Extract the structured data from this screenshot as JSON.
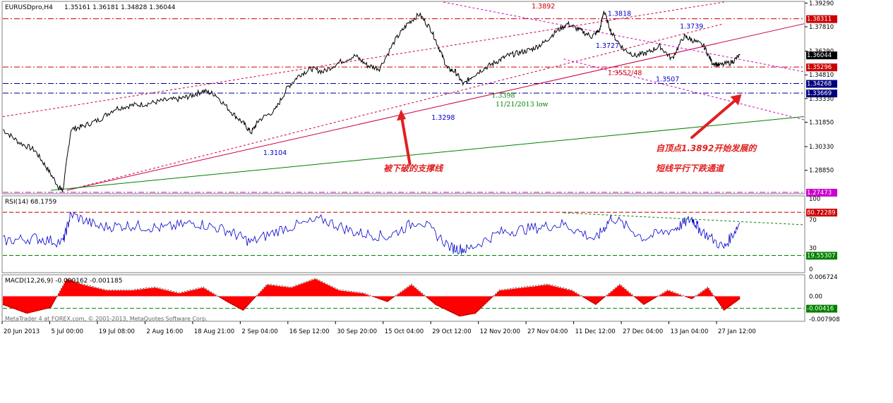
{
  "window": {
    "symbol_title": "EURUSDpro,H4",
    "ohlc": "1.35161 1.36181 1.34828 1.36044",
    "watermark": "MetaTrader 4 at FOREX.com, © 2001-2013, MetaQuotes Software Corp."
  },
  "colors": {
    "price_line": "#000000",
    "rsi_line": "#0000cc",
    "macd_hist": "#ff0000",
    "support_line": "#cc0044",
    "channel_line": "#cc0044",
    "long_trend": "#008000",
    "annotation_red": "#e02020",
    "hline_red": "#cc0000",
    "hline_blue": "#000080",
    "hline_magenta": "#cc00cc"
  },
  "chart_data": [
    {
      "id": "price",
      "type": "line",
      "ylim": [
        1.2743,
        1.3935
      ],
      "ticks_right": [
        "1.39290",
        "1.37810",
        "1.36290",
        "1.34810",
        "1.33330",
        "1.31850",
        "1.30330",
        "1.28850"
      ],
      "x_labels": [
        "20 Jun 2013",
        "5 Jul 00:00",
        "19 Jul 08:00",
        "2 Aug 16:00",
        "18 Aug 21:00",
        "2 Sep 04:00",
        "16 Sep 12:00",
        "30 Sep 20:00",
        "15 Oct 04:00",
        "29 Oct 12:00",
        "12 Nov 20:00",
        "27 Nov 04:00",
        "11 Dec 12:00",
        "27 Dec 04:00",
        "13 Jan 04:00",
        "27 Jan 12:00"
      ],
      "price_path": [
        [
          0,
          1.314
        ],
        [
          0.02,
          1.306
        ],
        [
          0.04,
          1.301
        ],
        [
          0.055,
          1.29
        ],
        [
          0.07,
          1.278
        ],
        [
          0.075,
          1.276
        ],
        [
          0.085,
          1.314
        ],
        [
          0.1,
          1.316
        ],
        [
          0.12,
          1.32
        ],
        [
          0.14,
          1.327
        ],
        [
          0.16,
          1.329
        ],
        [
          0.18,
          1.33
        ],
        [
          0.2,
          1.332
        ],
        [
          0.22,
          1.333
        ],
        [
          0.235,
          1.335
        ],
        [
          0.25,
          1.338
        ],
        [
          0.265,
          1.336
        ],
        [
          0.285,
          1.325
        ],
        [
          0.3,
          1.318
        ],
        [
          0.31,
          1.312
        ],
        [
          0.32,
          1.32
        ],
        [
          0.34,
          1.326
        ],
        [
          0.355,
          1.34
        ],
        [
          0.37,
          1.348
        ],
        [
          0.385,
          1.352
        ],
        [
          0.4,
          1.35
        ],
        [
          0.42,
          1.356
        ],
        [
          0.44,
          1.36
        ],
        [
          0.455,
          1.354
        ],
        [
          0.47,
          1.352
        ],
        [
          0.49,
          1.37
        ],
        [
          0.505,
          1.38
        ],
        [
          0.52,
          1.386
        ],
        [
          0.535,
          1.376
        ],
        [
          0.545,
          1.364
        ],
        [
          0.555,
          1.352
        ],
        [
          0.565,
          1.35
        ],
        [
          0.575,
          1.342
        ],
        [
          0.585,
          1.347
        ],
        [
          0.6,
          1.352
        ],
        [
          0.615,
          1.356
        ],
        [
          0.63,
          1.36
        ],
        [
          0.645,
          1.362
        ],
        [
          0.66,
          1.364
        ],
        [
          0.675,
          1.368
        ],
        [
          0.69,
          1.375
        ],
        [
          0.705,
          1.38
        ],
        [
          0.72,
          1.376
        ],
        [
          0.735,
          1.372
        ],
        [
          0.745,
          1.376
        ],
        [
          0.75,
          1.388
        ],
        [
          0.76,
          1.374
        ],
        [
          0.775,
          1.364
        ],
        [
          0.79,
          1.36
        ],
        [
          0.805,
          1.362
        ],
        [
          0.82,
          1.366
        ],
        [
          0.835,
          1.358
        ],
        [
          0.85,
          1.372
        ],
        [
          0.86,
          1.37
        ],
        [
          0.875,
          1.366
        ],
        [
          0.885,
          1.356
        ],
        [
          0.895,
          1.354
        ],
        [
          0.91,
          1.356
        ],
        [
          0.92,
          1.3604
        ]
      ],
      "lines": [
        {
          "from": [
            0.08,
            1.276
          ],
          "to": [
            1.0,
            1.38
          ],
          "style": "solid",
          "color": "support_line"
        },
        {
          "from": [
            0.0,
            1.322
          ],
          "to": [
            0.9,
            1.3935
          ],
          "style": "dashed",
          "color": "channel_line"
        },
        {
          "from": [
            0.08,
            1.276
          ],
          "to": [
            0.9,
            1.38
          ],
          "style": "dashed",
          "color": "channel_line"
        },
        {
          "from": [
            0.55,
            1.3935
          ],
          "to": [
            1.0,
            1.35
          ],
          "style": "dashed",
          "color": "hline_magenta"
        },
        {
          "from": [
            0.7,
            1.358
          ],
          "to": [
            1.0,
            1.32
          ],
          "style": "dashed",
          "color": "hline_magenta"
        },
        {
          "from": [
            0.06,
            1.276
          ],
          "to": [
            1.0,
            1.322
          ],
          "style": "solid",
          "color": "long_trend"
        }
      ],
      "hlines": [
        {
          "value": 1.38311,
          "label": "1.38311",
          "color": "hline_red"
        },
        {
          "value": 1.35296,
          "label": "1.35296",
          "color": "hline_red"
        },
        {
          "value": 1.34268,
          "label": "1.34268",
          "color": "hline_blue"
        },
        {
          "value": 1.33669,
          "label": "1.33669",
          "color": "hline_blue"
        },
        {
          "value": 1.27473,
          "label": "1.27473",
          "color": "hline_magenta"
        }
      ],
      "current_price": "1.36044",
      "annotations": [
        {
          "text": "1.3892",
          "x": 0.66,
          "y": 1.3895,
          "color": "hline_red"
        },
        {
          "text": "1.3818",
          "x": 0.755,
          "y": 1.385,
          "color": "rsi_line"
        },
        {
          "text": "1.3739",
          "x": 0.845,
          "y": 1.377,
          "color": "rsi_line"
        },
        {
          "text": "1.3727",
          "x": 0.74,
          "y": 1.365,
          "color": "rsi_line"
        },
        {
          "text": "1.3552/48",
          "x": 0.755,
          "y": 1.348,
          "color": "hline_red"
        },
        {
          "text": "1.3507",
          "x": 0.815,
          "y": 1.344,
          "color": "rsi_line"
        },
        {
          "text": "1.3398",
          "x": 0.61,
          "y": 1.334,
          "color": "long_trend"
        },
        {
          "text": "11/21/2013 low",
          "x": 0.615,
          "y": 1.3285,
          "color": "long_trend"
        },
        {
          "text": "1.3298",
          "x": 0.535,
          "y": 1.32,
          "color": "rsi_line"
        },
        {
          "text": "1.3104",
          "x": 0.325,
          "y": 1.298,
          "color": "rsi_line"
        }
      ],
      "notes": [
        {
          "text": "被下破的支撑线",
          "x": 0.475,
          "y": 1.288
        },
        {
          "text": "自顶点1.3892开始发展的",
          "x": 0.815,
          "y": 1.3005
        },
        {
          "text": "短线平行下跌通道",
          "x": 0.815,
          "y": 1.288
        }
      ]
    },
    {
      "id": "rsi",
      "type": "line",
      "title": "RSI(14) 68.1759",
      "ylim": [
        0,
        100
      ],
      "ticks_right": [
        "100",
        "70",
        "30",
        "0"
      ],
      "levels": [
        {
          "value": 80.72289,
          "label": "80.72289",
          "color": "hline_red"
        },
        {
          "value": 19.55307,
          "label": "19.55307",
          "color": "long_trend"
        }
      ],
      "x": [
        0,
        0.04,
        0.075,
        0.085,
        0.12,
        0.16,
        0.2,
        0.24,
        0.28,
        0.31,
        0.35,
        0.4,
        0.44,
        0.48,
        0.52,
        0.56,
        0.58,
        0.62,
        0.66,
        0.7,
        0.74,
        0.76,
        0.8,
        0.84,
        0.86,
        0.87,
        0.9,
        0.92
      ],
      "values": [
        40,
        44,
        38,
        78,
        60,
        62,
        58,
        66,
        55,
        38,
        58,
        70,
        52,
        46,
        70,
        30,
        28,
        52,
        58,
        64,
        42,
        74,
        44,
        58,
        72,
        56,
        30,
        66
      ]
    },
    {
      "id": "macd",
      "type": "bar",
      "title": "MACD(12,26,9) -0.000162 -0.001185",
      "ylim": [
        -0.0079,
        0.0067
      ],
      "ticks_right": [
        "0.006724",
        "0.00",
        "-0.007908"
      ],
      "level": {
        "value": -0.00416,
        "label": "-0.00416",
        "color": "long_trend"
      },
      "x": [
        0,
        0.03,
        0.06,
        0.08,
        0.1,
        0.13,
        0.16,
        0.19,
        0.22,
        0.25,
        0.28,
        0.3,
        0.33,
        0.36,
        0.39,
        0.42,
        0.45,
        0.48,
        0.51,
        0.54,
        0.57,
        0.59,
        0.62,
        0.65,
        0.68,
        0.71,
        0.74,
        0.77,
        0.8,
        0.83,
        0.86,
        0.88,
        0.9,
        0.92
      ],
      "values": [
        -0.003,
        -0.006,
        -0.004,
        0.006,
        0.004,
        0.002,
        0.002,
        0.003,
        0.001,
        0.003,
        -0.002,
        -0.005,
        0.004,
        0.003,
        0.006,
        0.002,
        0.001,
        -0.002,
        0.004,
        -0.003,
        -0.007,
        -0.006,
        0.002,
        0.003,
        0.004,
        0.002,
        -0.003,
        0.004,
        -0.003,
        0.002,
        -0.001,
        0.003,
        -0.005,
        -0.001
      ]
    }
  ]
}
